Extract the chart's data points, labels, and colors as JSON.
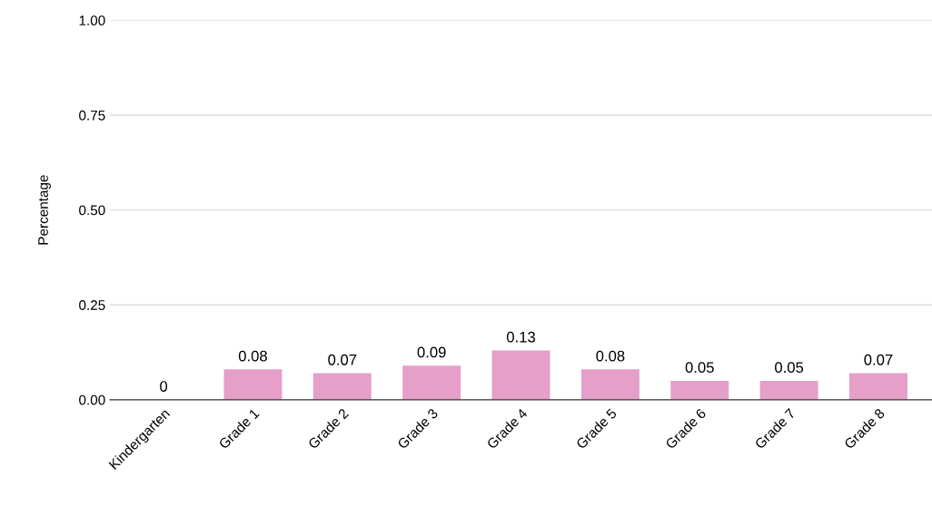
{
  "chart_data": {
    "type": "bar",
    "ylabel": "Percentage",
    "categories": [
      "Kindergarten",
      "Grade 1",
      "Grade 2",
      "Grade 3",
      "Grade 4",
      "Grade 5",
      "Grade 6",
      "Grade 7",
      "Grade 8"
    ],
    "values": [
      0,
      0.08,
      0.07,
      0.09,
      0.13,
      0.08,
      0.05,
      0.05,
      0.07
    ],
    "color": "#e59fc8",
    "ylim": [
      0,
      1
    ],
    "yticks": [
      {
        "value": 0,
        "label": "0.00"
      },
      {
        "value": 0.25,
        "label": "0.25"
      },
      {
        "value": 0.5,
        "label": "0.50"
      },
      {
        "value": 0.75,
        "label": "0.75"
      },
      {
        "value": 1,
        "label": "1.00"
      }
    ],
    "grid": "y",
    "data_labels": true,
    "legend": false
  }
}
